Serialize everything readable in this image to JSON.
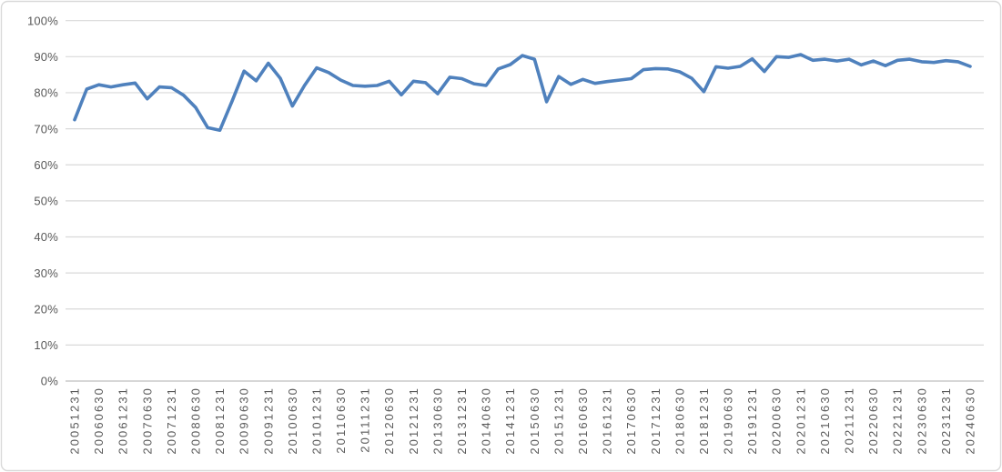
{
  "chart_data": {
    "type": "line",
    "title": "",
    "subtitle": "",
    "legend": false,
    "grid": true,
    "x": [
      "20051231",
      "20060331",
      "20060630",
      "20060930",
      "20061231",
      "20070331",
      "20070630",
      "20070930",
      "20071231",
      "20080331",
      "20080630",
      "20080930",
      "20081231",
      "20090331",
      "20090630",
      "20090930",
      "20091231",
      "20100331",
      "20100630",
      "20100930",
      "20101231",
      "20110331",
      "20110630",
      "20110930",
      "20111231",
      "20120331",
      "20120630",
      "20120930",
      "20121231",
      "20130331",
      "20130630",
      "20130930",
      "20131231",
      "20140331",
      "20140630",
      "20140930",
      "20141231",
      "20150331",
      "20150630",
      "20150930",
      "20151231",
      "20160331",
      "20160630",
      "20160930",
      "20161231",
      "20170331",
      "20170630",
      "20170930",
      "20171231",
      "20180331",
      "20180630",
      "20180930",
      "20181231",
      "20190331",
      "20190630",
      "20190930",
      "20191231",
      "20200331",
      "20200630",
      "20200930",
      "20201231",
      "20210331",
      "20210630",
      "20210930",
      "20211231",
      "20220331",
      "20220630",
      "20220930",
      "20221231",
      "20230331",
      "20230630",
      "20230930",
      "20231231",
      "20240331",
      "20240630"
    ],
    "series": [
      {
        "name": "",
        "color": "#4F81BD",
        "values": [
          72.5,
          81.0,
          82.2,
          81.6,
          82.2,
          82.7,
          78.3,
          81.6,
          81.4,
          79.3,
          75.9,
          70.3,
          69.6,
          77.6,
          86.0,
          83.3,
          88.2,
          84.0,
          76.3,
          82.0,
          86.9,
          85.6,
          83.5,
          82.0,
          81.8,
          82.0,
          83.2,
          79.4,
          83.2,
          82.8,
          79.7,
          84.3,
          83.9,
          82.5,
          82.0,
          86.6,
          87.8,
          90.3,
          89.3,
          77.5,
          84.5,
          82.3,
          83.7,
          82.6,
          83.1,
          83.5,
          83.9,
          86.4,
          86.7,
          86.6,
          85.8,
          84.0,
          80.3,
          87.2,
          86.8,
          87.3,
          89.4,
          85.9,
          90.0,
          89.8,
          90.6,
          89.0,
          89.3,
          88.8,
          89.3,
          87.7,
          88.8,
          87.5,
          89.0,
          89.3,
          88.6,
          88.4,
          88.9,
          88.6,
          87.3
        ]
      }
    ],
    "x_axis": {
      "tick_labels": [
        "20051231",
        "20060630",
        "20061231",
        "20070630",
        "20071231",
        "20080630",
        "20081231",
        "20090630",
        "20091231",
        "20100630",
        "20101231",
        "20110630",
        "20111231",
        "20120630",
        "20121231",
        "20130630",
        "20131231",
        "20140630",
        "20141231",
        "20150630",
        "20151231",
        "20160630",
        "20161231",
        "20170630",
        "20171231",
        "20180630",
        "20181231",
        "20190630",
        "20191231",
        "20200630",
        "20201231",
        "20210630",
        "20211231",
        "20220630",
        "20221231",
        "20230630",
        "20231231",
        "20240630"
      ],
      "label_every_n_points": 2,
      "label_rotation_deg": -90
    },
    "y_axis": {
      "range": [
        0,
        100
      ],
      "tick_step": 10,
      "tick_labels": [
        "0%",
        "10%",
        "20%",
        "30%",
        "40%",
        "50%",
        "60%",
        "70%",
        "80%",
        "90%",
        "100%"
      ]
    },
    "colors": {
      "line": "#4F81BD",
      "gridline": "#D9D9D9",
      "axis_line": "#BFBFBF",
      "tick_text": "#595959",
      "chart_border": "#D9D9D9",
      "background": "#FFFFFF"
    }
  }
}
